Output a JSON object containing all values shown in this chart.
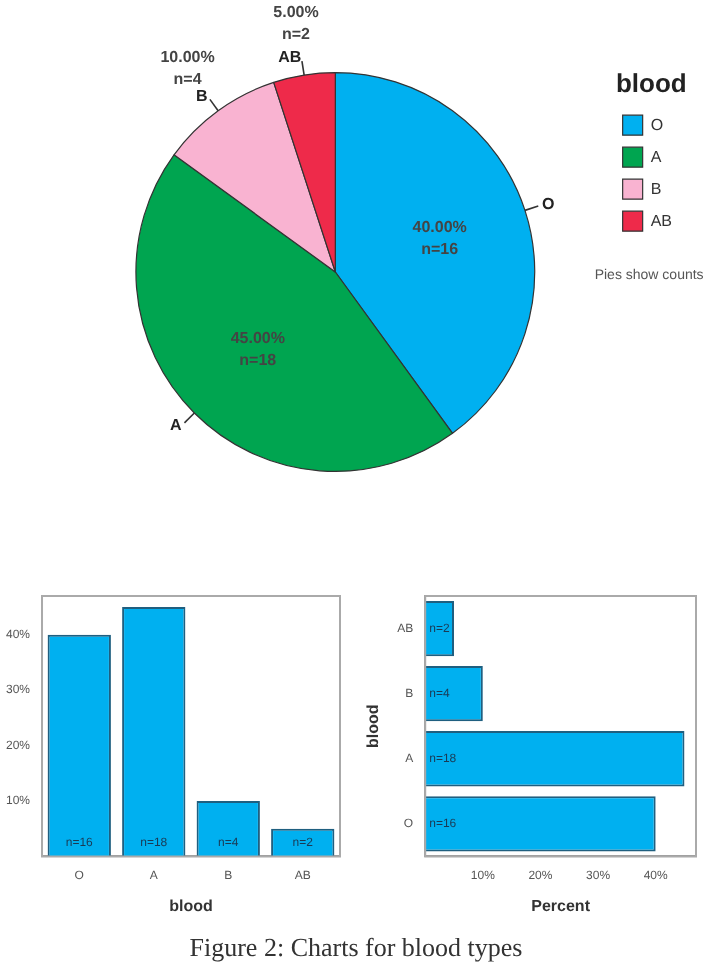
{
  "chart_data": [
    {
      "type": "pie",
      "categories": [
        "O",
        "A",
        "B",
        "AB"
      ],
      "values": [
        40,
        45,
        10,
        5
      ],
      "colors": [
        "#00b0f0",
        "#00a550",
        "#f9b3d1",
        "#ee2a4a"
      ],
      "value_labels": [
        "40.00%\nn=16",
        "45.00%\nn=18",
        "10.00%\nn=4",
        "5.00%\nn=2"
      ],
      "legend": "top right",
      "legend_title": "blood",
      "annotations": [
        "Pies show counts"
      ]
    },
    {
      "type": "bar",
      "categories": [
        "O",
        "A",
        "B",
        "AB"
      ],
      "values": [
        40,
        45,
        10,
        5
      ],
      "color": "#00b0f0",
      "ylim": [
        0,
        47
      ],
      "yticks": [
        {
          "value": 10,
          "label": "10%"
        },
        {
          "value": 20,
          "label": "20%"
        },
        {
          "value": 30,
          "label": "30%"
        },
        {
          "value": 40,
          "label": "40%"
        }
      ],
      "xlabel": "blood",
      "annotations": [
        "n=16",
        "n=18",
        "n=4",
        "n=2"
      ]
    },
    {
      "type": "bar",
      "orientation": "horizontal",
      "categories": [
        "AB",
        "B",
        "A",
        "O"
      ],
      "values": [
        5,
        10,
        45,
        40
      ],
      "color": "#00b0f0",
      "xlim": [
        0,
        47
      ],
      "xticks": [
        {
          "value": 10,
          "label": "10%"
        },
        {
          "value": 20,
          "label": "20%"
        },
        {
          "value": 30,
          "label": "30%"
        },
        {
          "value": 40,
          "label": "40%"
        }
      ],
      "xlabel": "Percent",
      "ylabel": "blood",
      "annotations": [
        {
          "text": "n=2",
          "y": "AB"
        },
        {
          "text": "n=4",
          "y": "B"
        },
        {
          "text": "n=18",
          "y": "A"
        },
        {
          "text": "n=16",
          "y": "O"
        },
        "Figure 2: Charts for blood types"
      ]
    }
  ]
}
